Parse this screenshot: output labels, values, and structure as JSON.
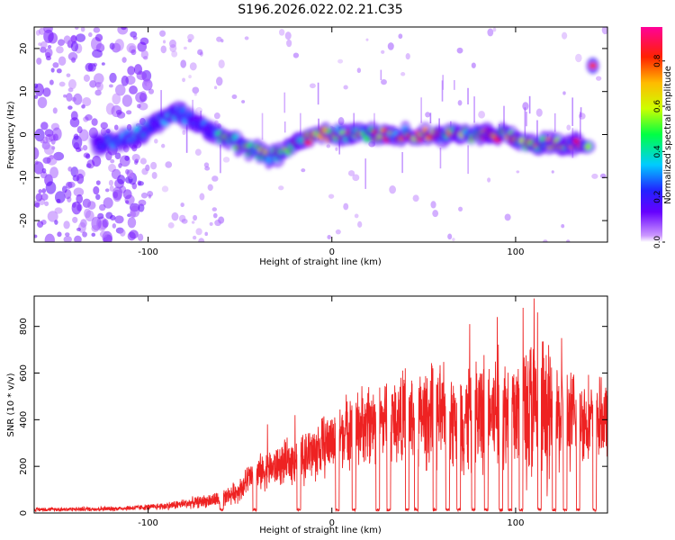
{
  "title": "S196.2026.022.02.21.C35",
  "chart_data": [
    {
      "type": "heatmap",
      "xlabel": "Height of straight line (km)",
      "ylabel": "Frequency (Hz)",
      "xlim": [
        -162,
        150
      ],
      "ylim": [
        -25,
        25
      ],
      "x_ticks": [
        -100,
        0,
        100
      ],
      "y_ticks": [
        -20,
        -10,
        0,
        10,
        20
      ],
      "colorbar": {
        "label": "Normalized spectral amplitude",
        "range": [
          0,
          0.95
        ],
        "ticks": [
          0.0,
          0.2,
          0.4,
          0.6,
          0.8
        ]
      },
      "ridge_trace": {
        "x": [
          -128,
          -115,
          -105,
          -95,
          -85,
          -78,
          -70,
          -62,
          -55,
          -48,
          -40,
          -33,
          -27,
          -20,
          -12,
          -5,
          0,
          8,
          15,
          22,
          30,
          40,
          50,
          60,
          70,
          80,
          90,
          95,
          100,
          105,
          110,
          115,
          120,
          125,
          130,
          135,
          140
        ],
        "y": [
          -2,
          -1,
          0,
          3,
          5,
          4,
          2,
          0,
          -1,
          -3,
          -4,
          -5,
          -4,
          -2,
          -1,
          0,
          0,
          0,
          0,
          0,
          0,
          0,
          0,
          0,
          0,
          0,
          0,
          0,
          -1,
          -2,
          -3,
          -2,
          -2,
          -2,
          -2,
          -2,
          -2
        ]
      },
      "isolated_patch": {
        "x": 142,
        "y": 16
      }
    },
    {
      "type": "line",
      "xlabel": "Height of straight line (km)",
      "ylabel": "SNR (10 * v/v)",
      "xlim": [
        -162,
        150
      ],
      "ylim": [
        0,
        930
      ],
      "x_ticks": [
        -100,
        0,
        100
      ],
      "y_ticks": [
        0,
        200,
        400,
        600,
        800
      ],
      "color": "#ee2222",
      "envelope": {
        "x": [
          -162,
          -120,
          -100,
          -90,
          -80,
          -60,
          -50,
          -45,
          -40,
          -30,
          -20,
          -10,
          0,
          5,
          10,
          20,
          30,
          40,
          50,
          60,
          70,
          80,
          90,
          100,
          105,
          110,
          115,
          120,
          130,
          140,
          150
        ],
        "baseline": [
          15,
          18,
          25,
          30,
          40,
          60,
          100,
          150,
          170,
          200,
          230,
          260,
          310,
          340,
          360,
          380,
          400,
          400,
          410,
          410,
          400,
          420,
          430,
          430,
          440,
          440,
          420,
          410,
          400,
          400,
          400
        ],
        "amplitude": [
          10,
          12,
          15,
          20,
          25,
          40,
          60,
          80,
          90,
          100,
          120,
          150,
          160,
          170,
          180,
          200,
          220,
          240,
          250,
          260,
          280,
          300,
          330,
          360,
          400,
          420,
          380,
          300,
          250,
          220,
          200
        ]
      },
      "peaks": [
        {
          "x": 110,
          "y": 920
        },
        {
          "x": 104,
          "y": 880
        },
        {
          "x": 112,
          "y": 860
        },
        {
          "x": 90,
          "y": 840
        },
        {
          "x": 96,
          "y": 800
        },
        {
          "x": 75,
          "y": 810
        },
        {
          "x": 83,
          "y": 760
        },
        {
          "x": 62,
          "y": 700
        },
        {
          "x": 125,
          "y": 750
        },
        {
          "x": 118,
          "y": 720
        },
        {
          "x": 55,
          "y": 620
        },
        {
          "x": 40,
          "y": 620
        },
        {
          "x": 20,
          "y": 540
        },
        {
          "x": 10,
          "y": 480
        },
        {
          "x": -35,
          "y": 380
        },
        {
          "x": -20,
          "y": 420
        }
      ],
      "dropouts": [
        -60,
        -42,
        -18,
        3,
        12,
        25,
        31,
        41,
        46,
        56,
        63,
        69,
        77,
        84,
        92,
        97,
        103,
        113,
        121,
        127,
        134,
        143
      ]
    }
  ]
}
